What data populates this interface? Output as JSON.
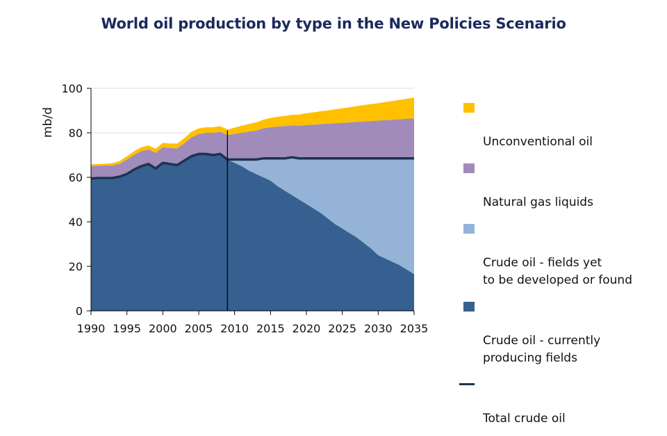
{
  "chart_data": {
    "type": "area",
    "title": "World oil production by type in the New Policies Scenario",
    "xlabel": "",
    "ylabel": "mb/d",
    "xlim": [
      1990,
      2035
    ],
    "ylim": [
      0,
      100
    ],
    "x_ticks": [
      1990,
      1995,
      2000,
      2005,
      2010,
      2015,
      2020,
      2025,
      2030,
      2035
    ],
    "y_ticks": [
      0,
      20,
      40,
      60,
      80,
      100
    ],
    "grid": "horizontal",
    "legend_position": "right",
    "projection_start_year": 2009,
    "x": [
      1990,
      1991,
      1992,
      1993,
      1994,
      1995,
      1996,
      1997,
      1998,
      1999,
      2000,
      2001,
      2002,
      2003,
      2004,
      2005,
      2006,
      2007,
      2008,
      2009,
      2010,
      2011,
      2012,
      2013,
      2014,
      2015,
      2016,
      2017,
      2018,
      2019,
      2020,
      2021,
      2022,
      2023,
      2024,
      2025,
      2026,
      2027,
      2028,
      2029,
      2030,
      2031,
      2032,
      2033,
      2034,
      2035
    ],
    "series": [
      {
        "name": "Crude oil - currently producing fields",
        "color": "#36608f",
        "values": [
          59.5,
          59.7,
          59.7,
          59.7,
          60.3,
          61.5,
          63.5,
          65.0,
          66.0,
          64.0,
          66.5,
          66.0,
          65.5,
          67.5,
          69.5,
          70.5,
          70.5,
          70.0,
          70.5,
          68.0,
          66.5,
          65.0,
          63.0,
          61.5,
          60.0,
          58.5,
          56.0,
          54.0,
          52.0,
          50.0,
          48.0,
          46.0,
          44.0,
          41.5,
          39.0,
          37.0,
          35.0,
          33.0,
          30.5,
          28.0,
          25.0,
          23.5,
          22.0,
          20.5,
          18.5,
          16.5
        ]
      },
      {
        "name": "Crude oil - fields yet to be developed or found",
        "color": "#95b3d7",
        "values": [
          0,
          0,
          0,
          0,
          0,
          0,
          0,
          0,
          0,
          0,
          0,
          0,
          0,
          0,
          0,
          0,
          0,
          0,
          0,
          0,
          1.5,
          3.0,
          5.0,
          6.5,
          8.5,
          10.0,
          12.5,
          14.5,
          17.0,
          18.5,
          20.5,
          22.5,
          24.5,
          27.0,
          29.5,
          31.5,
          33.5,
          35.5,
          38.0,
          40.5,
          43.5,
          45.0,
          46.5,
          48.0,
          50.0,
          52.0
        ]
      },
      {
        "name": "Natural gas liquids",
        "color": "#a08bba",
        "values": [
          5.5,
          5.5,
          5.6,
          5.7,
          5.8,
          6.5,
          6.6,
          6.8,
          6.5,
          7.0,
          7.0,
          7.2,
          7.5,
          7.8,
          8.5,
          9.0,
          9.5,
          10.0,
          10.0,
          11.0,
          11.5,
          12.0,
          12.5,
          13.0,
          13.5,
          14.0,
          14.3,
          14.5,
          14.3,
          14.7,
          15.0,
          15.2,
          15.4,
          15.6,
          15.8,
          16.0,
          16.2,
          16.4,
          16.6,
          16.8,
          17.0,
          17.2,
          17.4,
          17.6,
          17.8,
          18.0
        ]
      },
      {
        "name": "Unconventional oil",
        "color": "#ffc000",
        "values": [
          0.8,
          0.8,
          0.8,
          1.0,
          1.2,
          1.5,
          1.6,
          1.7,
          1.8,
          1.8,
          2.0,
          2.0,
          2.2,
          2.3,
          2.5,
          2.5,
          2.5,
          2.5,
          2.5,
          2.5,
          2.8,
          3.2,
          3.5,
          3.7,
          3.9,
          4.2,
          4.4,
          4.6,
          4.8,
          5.0,
          5.3,
          5.5,
          5.8,
          6.0,
          6.3,
          6.5,
          6.8,
          7.1,
          7.4,
          7.6,
          7.8,
          8.1,
          8.4,
          8.7,
          9.0,
          9.3
        ]
      }
    ],
    "line_series": {
      "name": "Total crude oil",
      "color": "#1c3350",
      "values": [
        59.5,
        59.7,
        59.7,
        59.7,
        60.3,
        61.5,
        63.5,
        65.0,
        66.0,
        64.0,
        66.5,
        66.0,
        65.5,
        67.5,
        69.5,
        70.5,
        70.5,
        70.0,
        70.5,
        68.0,
        68.0,
        68.0,
        68.0,
        68.0,
        68.5,
        68.5,
        68.5,
        68.5,
        69.0,
        68.5,
        68.5,
        68.5,
        68.5,
        68.5,
        68.5,
        68.5,
        68.5,
        68.5,
        68.5,
        68.5,
        68.5,
        68.5,
        68.5,
        68.5,
        68.5,
        68.5
      ]
    }
  },
  "legend": [
    {
      "label": "Unconventional oil",
      "color": "#ffc000",
      "kind": "area"
    },
    {
      "label": "Natural gas liquids",
      "color": "#a08bba",
      "kind": "area"
    },
    {
      "label": "Crude oil - fields yet\nto be developed or found",
      "color": "#95b3d7",
      "kind": "area"
    },
    {
      "label": "Crude oil - currently\nproducing fields",
      "color": "#36608f",
      "kind": "area"
    },
    {
      "label": "Total crude oil",
      "color": "#1c3350",
      "kind": "line"
    }
  ]
}
